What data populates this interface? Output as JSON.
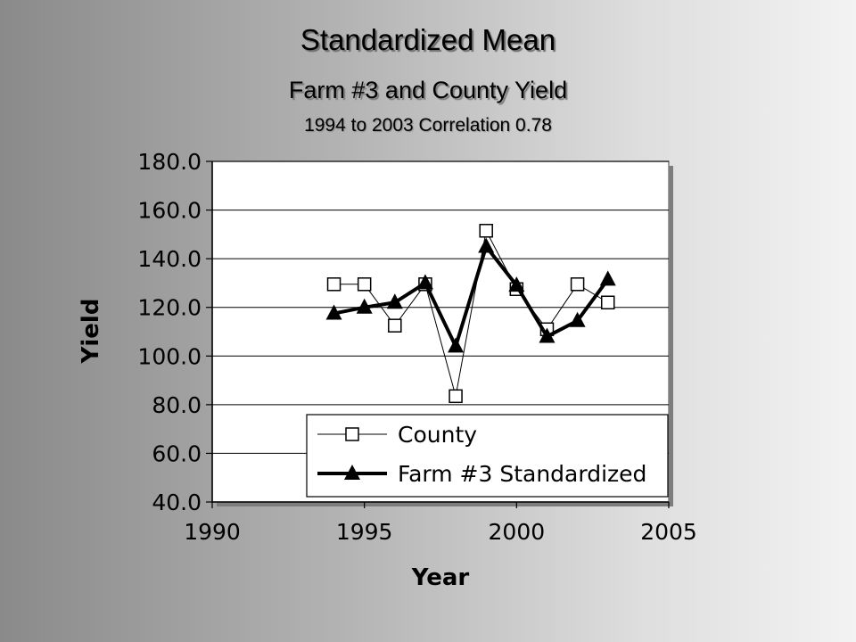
{
  "chart_data": {
    "type": "line",
    "title": "Standardized Mean",
    "subtitle": "Farm #3 and County Yield",
    "subtitle2": "1994 to 2003 Correlation 0.78",
    "xlabel": "Year",
    "ylabel": "Yield",
    "xlim": [
      1990,
      2005
    ],
    "ylim": [
      40,
      180
    ],
    "xticks": [
      "1990",
      "1995",
      "2000",
      "2005"
    ],
    "yticks": [
      "40.0",
      "60.0",
      "80.0",
      "100.0",
      "120.0",
      "140.0",
      "160.0",
      "180.0"
    ],
    "grid": "horizontal",
    "legend": "bottom-right",
    "x": [
      1994,
      1995,
      1996,
      1997,
      1998,
      1999,
      2000,
      2001,
      2002,
      2003
    ],
    "series": [
      {
        "name": "County",
        "marker": "square",
        "values": [
          129.5,
          129.5,
          112.5,
          129.5,
          83.5,
          151.5,
          127.5,
          111.0,
          129.5,
          122.0
        ]
      },
      {
        "name": "Farm #3 Standardized",
        "marker": "triangle",
        "values": [
          117.5,
          120.0,
          122.0,
          130.0,
          104.0,
          145.0,
          129.0,
          108.0,
          114.5,
          131.5
        ]
      }
    ],
    "colors": {
      "line": "#000000",
      "plot_bg": "#ffffff",
      "grid": "#000000"
    }
  }
}
